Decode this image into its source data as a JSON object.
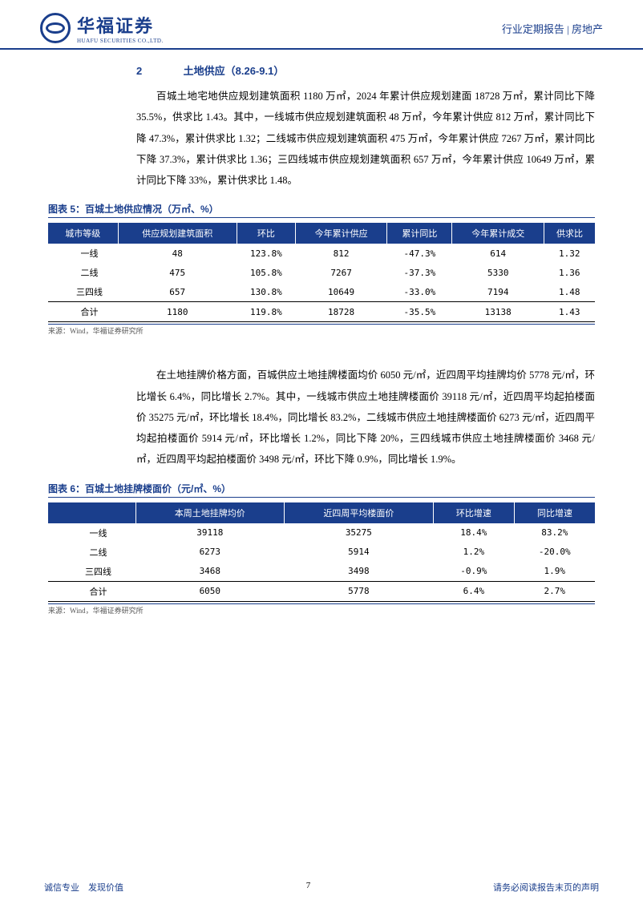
{
  "header": {
    "logo_cn": "华福证券",
    "logo_en": "HUAFU SECURITIES CO.,LTD.",
    "right": "行业定期报告 | 房地产"
  },
  "section": {
    "num": "2",
    "title": "土地供应（8.26-9.1）"
  },
  "para1": "百城土地宅地供应规划建筑面积 1180 万㎡，2024 年累计供应规划建面 18728 万㎡，累计同比下降 35.5%，供求比 1.43。其中，一线城市供应规划建筑面积 48 万㎡，今年累计供应 812 万㎡，累计同比下降 47.3%，累计供求比 1.32；二线城市供应规划建筑面积 475 万㎡，今年累计供应 7267 万㎡，累计同比下降 37.3%，累计供求比 1.36；三四线城市供应规划建筑面积 657 万㎡，今年累计供应 10649 万㎡，累计同比下降 33%，累计供求比 1.48。",
  "figure5": {
    "title": "图表 5：百城土地供应情况（万㎡、%）",
    "columns": [
      "城市等级",
      "供应规划建筑面积",
      "环比",
      "今年累计供应",
      "累计同比",
      "今年累计成交",
      "供求比"
    ],
    "rows": [
      [
        "一线",
        "48",
        "123.8%",
        "812",
        "-47.3%",
        "614",
        "1.32"
      ],
      [
        "二线",
        "475",
        "105.8%",
        "7267",
        "-37.3%",
        "5330",
        "1.36"
      ],
      [
        "三四线",
        "657",
        "130.8%",
        "10649",
        "-33.0%",
        "7194",
        "1.48"
      ]
    ],
    "total": [
      "合计",
      "1180",
      "119.8%",
      "18728",
      "-35.5%",
      "13138",
      "1.43"
    ],
    "source": "来源：Wind，华福证券研究所"
  },
  "para2": "在土地挂牌价格方面，百城供应土地挂牌楼面均价 6050 元/㎡，近四周平均挂牌均价 5778 元/㎡，环比增长 6.4%，同比增长 2.7%。其中，一线城市供应土地挂牌楼面价 39118 元/㎡，近四周平均起拍楼面价 35275 元/㎡，环比增长 18.4%，同比增长 83.2%，二线城市供应土地挂牌楼面价 6273 元/㎡，近四周平均起拍楼面价 5914 元/㎡，环比增长 1.2%，同比下降 20%，三四线城市供应土地挂牌楼面价 3468 元/㎡，近四周平均起拍楼面价 3498 元/㎡，环比下降 0.9%，同比增长 1.9%。",
  "figure6": {
    "title": "图表 6：百城土地挂牌楼面价（元/㎡、%）",
    "columns": [
      "",
      "本周土地挂牌均价",
      "近四周平均楼面价",
      "环比增速",
      "同比增速"
    ],
    "rows": [
      [
        "一线",
        "39118",
        "35275",
        "18.4%",
        "83.2%"
      ],
      [
        "二线",
        "6273",
        "5914",
        "1.2%",
        "-20.0%"
      ],
      [
        "三四线",
        "3468",
        "3498",
        "-0.9%",
        "1.9%"
      ]
    ],
    "total": [
      "合计",
      "6050",
      "5778",
      "6.4%",
      "2.7%"
    ],
    "source": "来源：Wind，华福证券研究所"
  },
  "footer": {
    "left": "诚信专业　发现价值",
    "page": "7",
    "right": "请务必阅读报告末页的声明"
  },
  "colors": {
    "brand": "#1a3e8c",
    "text": "#000000",
    "bg": "#ffffff"
  }
}
